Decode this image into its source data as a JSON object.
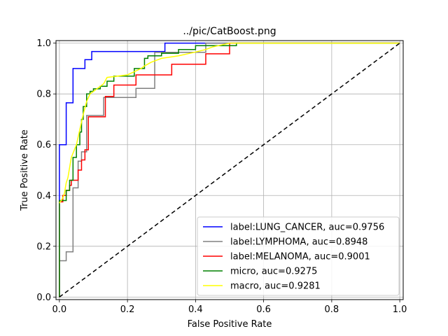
{
  "chart_data": {
    "type": "line",
    "title": "../pic/CatBoost.png",
    "xlabel": "False Positive Rate",
    "ylabel": "True Positive Rate",
    "xlim": [
      -0.01,
      1.01
    ],
    "ylim": [
      -0.01,
      1.01
    ],
    "xticks": [
      0.0,
      0.2,
      0.4,
      0.6,
      0.8,
      1.0
    ],
    "yticks": [
      0.0,
      0.2,
      0.4,
      0.6,
      0.8,
      1.0
    ],
    "xtick_labels": [
      "0.0",
      "0.2",
      "0.4",
      "0.6",
      "0.8",
      "1.0"
    ],
    "ytick_labels": [
      "0.0",
      "0.2",
      "0.4",
      "0.6",
      "0.8",
      "1.0"
    ],
    "grid": true,
    "legend_position": "lower-right",
    "series": [
      {
        "name": "label:LUNG_CANCER, auc=0.9756",
        "color": "#0000ff",
        "style": "solid",
        "x": [
          0.0,
          0.0,
          0.02,
          0.02,
          0.04,
          0.04,
          0.075,
          0.075,
          0.095,
          0.095,
          0.31,
          0.31,
          0.44,
          0.44,
          1.0
        ],
        "y": [
          0.0,
          0.6,
          0.6,
          0.765,
          0.765,
          0.9,
          0.9,
          0.935,
          0.935,
          0.967,
          0.967,
          1.0,
          1.0,
          1.0,
          1.0
        ]
      },
      {
        "name": "label:LYMPHOMA, auc=0.8948",
        "color": "#808080",
        "style": "solid",
        "x": [
          0.0,
          0.0,
          0.02,
          0.02,
          0.04,
          0.04,
          0.055,
          0.055,
          0.065,
          0.065,
          0.08,
          0.08,
          0.13,
          0.13,
          0.225,
          0.225,
          0.28,
          0.28,
          0.43,
          0.43,
          1.0
        ],
        "y": [
          0.0,
          0.143,
          0.143,
          0.178,
          0.178,
          0.43,
          0.43,
          0.535,
          0.535,
          0.572,
          0.572,
          0.715,
          0.715,
          0.786,
          0.786,
          0.822,
          0.822,
          0.964,
          0.964,
          1.0,
          1.0
        ]
      },
      {
        "name": "label:MELANOMA, auc=0.9001",
        "color": "#ff0000",
        "style": "solid",
        "x": [
          0.0,
          0.0,
          0.01,
          0.01,
          0.02,
          0.02,
          0.03,
          0.03,
          0.035,
          0.035,
          0.055,
          0.055,
          0.065,
          0.065,
          0.075,
          0.075,
          0.085,
          0.085,
          0.135,
          0.135,
          0.16,
          0.16,
          0.225,
          0.225,
          0.33,
          0.33,
          0.43,
          0.43,
          0.5,
          0.5,
          1.0
        ],
        "y": [
          0.0,
          0.375,
          0.375,
          0.4,
          0.4,
          0.42,
          0.42,
          0.44,
          0.44,
          0.46,
          0.46,
          0.5,
          0.5,
          0.54,
          0.54,
          0.58,
          0.58,
          0.71,
          0.71,
          0.79,
          0.79,
          0.835,
          0.835,
          0.875,
          0.875,
          0.917,
          0.917,
          0.958,
          0.958,
          1.0,
          1.0
        ]
      },
      {
        "name": "micro, auc=0.9275",
        "color": "#008000",
        "style": "solid",
        "x": [
          0.0,
          0.0,
          0.02,
          0.02,
          0.03,
          0.03,
          0.04,
          0.04,
          0.05,
          0.05,
          0.06,
          0.06,
          0.065,
          0.065,
          0.07,
          0.07,
          0.08,
          0.08,
          0.09,
          0.09,
          0.1,
          0.1,
          0.12,
          0.12,
          0.14,
          0.14,
          0.16,
          0.16,
          0.22,
          0.22,
          0.25,
          0.25,
          0.26,
          0.26,
          0.3,
          0.3,
          0.35,
          0.35,
          0.4,
          0.4,
          0.52,
          0.52,
          1.0
        ],
        "y": [
          0.0,
          0.38,
          0.38,
          0.42,
          0.42,
          0.46,
          0.46,
          0.55,
          0.55,
          0.6,
          0.6,
          0.65,
          0.65,
          0.7,
          0.7,
          0.75,
          0.75,
          0.8,
          0.8,
          0.81,
          0.81,
          0.82,
          0.82,
          0.83,
          0.83,
          0.85,
          0.85,
          0.87,
          0.87,
          0.9,
          0.9,
          0.94,
          0.94,
          0.95,
          0.95,
          0.96,
          0.96,
          0.975,
          0.975,
          0.99,
          0.99,
          1.0,
          1.0
        ]
      },
      {
        "name": "macro, auc=0.9281",
        "color": "#ffff00",
        "style": "solid",
        "x": [
          0.0,
          0.005,
          0.01,
          0.015,
          0.02,
          0.025,
          0.035,
          0.05,
          0.06,
          0.07,
          0.08,
          0.09,
          0.1,
          0.11,
          0.12,
          0.13,
          0.14,
          0.2,
          0.24,
          0.25,
          0.27,
          0.3,
          0.35,
          0.4,
          0.43,
          0.45,
          0.5,
          1.0
        ],
        "y": [
          0.37,
          0.38,
          0.39,
          0.41,
          0.45,
          0.47,
          0.55,
          0.6,
          0.66,
          0.72,
          0.77,
          0.8,
          0.81,
          0.82,
          0.83,
          0.84,
          0.865,
          0.875,
          0.9,
          0.91,
          0.925,
          0.94,
          0.95,
          0.965,
          0.975,
          0.985,
          1.0,
          1.0
        ]
      },
      {
        "name": "",
        "color": "#000000",
        "style": "dashed",
        "x": [
          0.0,
          1.0
        ],
        "y": [
          0.0,
          1.0
        ]
      }
    ]
  }
}
